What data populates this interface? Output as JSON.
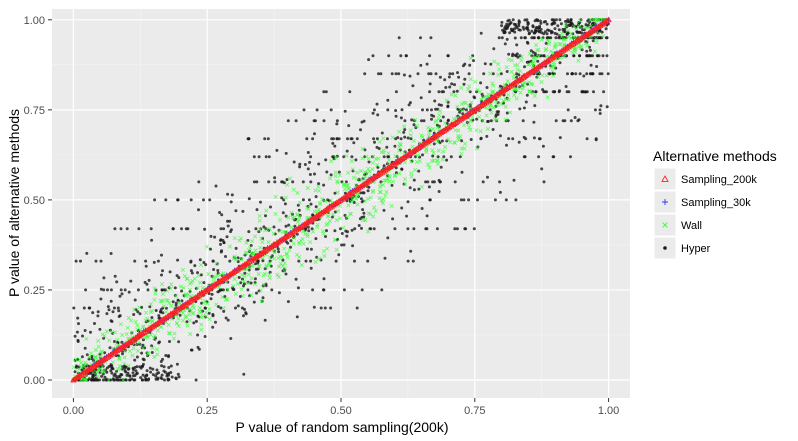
{
  "chart_data": {
    "type": "scatter",
    "xlabel": "P value of random sampling(200k)",
    "ylabel": "P value of alternative methods",
    "xlim": [
      -0.04,
      1.04
    ],
    "ylim": [
      -0.05,
      1.03
    ],
    "x_ticks": [
      "0.00",
      "0.25",
      "0.50",
      "0.75",
      "1.00"
    ],
    "y_ticks": [
      "0.00",
      "0.25",
      "0.50",
      "0.75",
      "1.00"
    ],
    "grid": true,
    "legend": {
      "title": "Alternative methods",
      "position": "right",
      "entries": [
        {
          "name": "Sampling_200k",
          "color": "#ff2020",
          "marker": "triangle-open"
        },
        {
          "name": "Sampling_30k",
          "color": "#3333ff",
          "marker": "plus"
        },
        {
          "name": "Wall",
          "color": "#33ff33",
          "marker": "x"
        },
        {
          "name": "Hyper",
          "color": "#1a1a1a",
          "marker": "dot"
        }
      ]
    },
    "series": [
      {
        "name": "Sampling_200k",
        "relation": "identity, y = x",
        "x_range": [
          0,
          1
        ]
      },
      {
        "name": "Sampling_30k",
        "relation": "approximately y = x",
        "x_range": [
          0,
          1
        ]
      },
      {
        "name": "Wall",
        "relation": "scattered closely around y = x",
        "x_range": [
          0,
          1
        ]
      },
      {
        "name": "Hyper",
        "relation": "widely scattered around y = x with horizontal bands",
        "x_range": [
          0,
          1
        ],
        "band_levels": [
          0.2,
          0.25,
          0.33,
          0.42,
          0.5,
          0.55,
          0.62,
          0.67,
          0.72,
          0.75,
          0.8,
          0.85,
          0.9,
          0.95
        ]
      }
    ]
  }
}
